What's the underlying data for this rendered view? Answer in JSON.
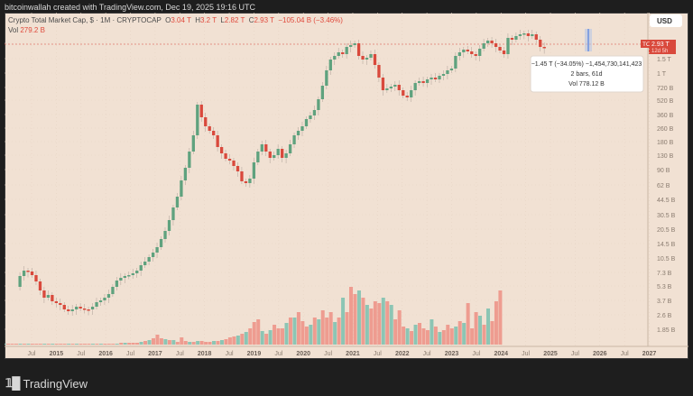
{
  "header": {
    "text": "bitcoinwallah created with TradingView.com, Dec 19, 2025 19:16 UTC"
  },
  "legend": {
    "title": "Crypto Total Market Cap, $ · 1M · CRYPTOCAP",
    "o_label": "O",
    "o": "3.04 T",
    "h_label": "H",
    "h": "3.2 T",
    "l_label": "L",
    "l": "2.82 T",
    "c_label": "C",
    "c": "2.93 T",
    "change": "−105.04 B (−3.46%)",
    "vol_label": "Vol",
    "vol": "279.2 B"
  },
  "price_scale": {
    "currency": "USD",
    "labels": [
      "2.1 T",
      "1.5 T",
      "1 T",
      "720 B",
      "520 B",
      "360 B",
      "260 B",
      "180 B",
      "130 B",
      "90 B",
      "62 B",
      "44.5 B",
      "30.5 B",
      "20.5 B",
      "14.5 B",
      "10.5 B",
      "7.3 B",
      "5.3 B",
      "3.7 B",
      "2.6 B",
      "1.85 B"
    ],
    "last_symbol": "TOTAL",
    "last_price": "2.93 T",
    "countdown": "12d 5h"
  },
  "time_axis": [
    "Jul",
    "2015",
    "Jul",
    "2016",
    "Jul",
    "2017",
    "Jul",
    "2018",
    "Jul",
    "2019",
    "Jul",
    "2020",
    "Jul",
    "2021",
    "Jul",
    "2022",
    "Jul",
    "2023",
    "Jul",
    "2024",
    "Jul",
    "2025",
    "Jul",
    "2026",
    "Jul",
    "2027"
  ],
  "measure_tooltip": {
    "line1": "−1.45 T (−34.05%) −1,454,730,141,423",
    "line2": "2 bars, 61d",
    "line3": "Vol 778.12 B"
  },
  "footer": {
    "brand": "TradingView"
  },
  "colors": {
    "up": "#5fa27e",
    "down": "#d9493c",
    "vol_up": "#8cc5b4",
    "vol_down": "#ee9c90",
    "bg": "#f1e1d3"
  },
  "chart_data": {
    "type": "candlestick",
    "title": "Crypto Total Market Cap, $ · 1M · CRYPTOCAP",
    "ylabel": "USD (log scale)",
    "y_scale": "log",
    "ylim": [
      "1.6 B",
      "3.6 T"
    ],
    "xlim": [
      "2014-05",
      "2027-06"
    ],
    "legend_position": "top-left",
    "last": {
      "open": "3.04 T",
      "high": "3.2 T",
      "low": "2.82 T",
      "close": "2.93 T",
      "volume": "279.2 B"
    },
    "approx_yearly_closes_usd": {
      "2014-12": "5 B",
      "2015-12": "7 B",
      "2016-12": "18 B",
      "2017-12": "600 B",
      "2018-12": "130 B",
      "2019-12": "190 B",
      "2020-12": "770 B",
      "2021-12": "2.2 T",
      "2022-12": "800 B",
      "2023-12": "1.6 T",
      "2024-12": "3.3 T",
      "2025-12": "2.93 T"
    },
    "peaks": {
      "2018-01": "830 B",
      "2021-11": "3.0 T",
      "2025-10": "4.3 T"
    },
    "measure": {
      "change": "−1.45 T",
      "pct": "−34.05%",
      "bars": 2,
      "days": 61,
      "volume": "778.12 B"
    }
  }
}
